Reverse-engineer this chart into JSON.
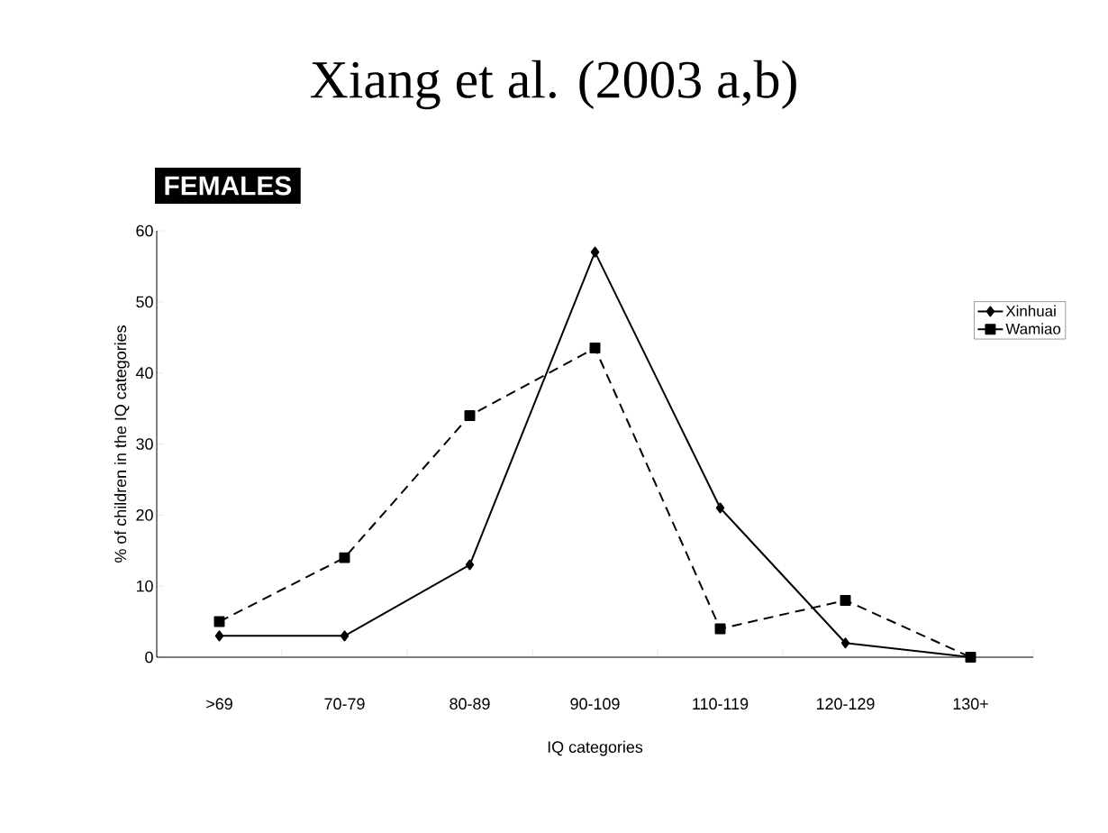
{
  "chart_data": {
    "type": "line",
    "title": "Xiang et al. (2003 a,b)",
    "annotations": [
      "FEMALES"
    ],
    "xlabel": "IQ categories",
    "ylabel": "% of children in the IQ categories",
    "categories": [
      ">69",
      "70-79",
      "80-89",
      "90-109",
      "110-119",
      "120-129",
      "130+"
    ],
    "series": [
      {
        "name": "Xinhuai",
        "color": "#000000",
        "marker": "diamond",
        "line_style": "solid",
        "values": [
          3,
          3,
          13,
          57,
          21,
          2,
          0
        ]
      },
      {
        "name": "Wamiao",
        "color": "#000000",
        "marker": "square",
        "line_style": "dashed",
        "values": [
          5,
          14,
          34,
          43.5,
          4,
          8,
          0
        ]
      }
    ],
    "ylim": [
      0,
      60
    ],
    "yticks": [
      0,
      10,
      20,
      30,
      40,
      50,
      60
    ],
    "legend": "right"
  }
}
